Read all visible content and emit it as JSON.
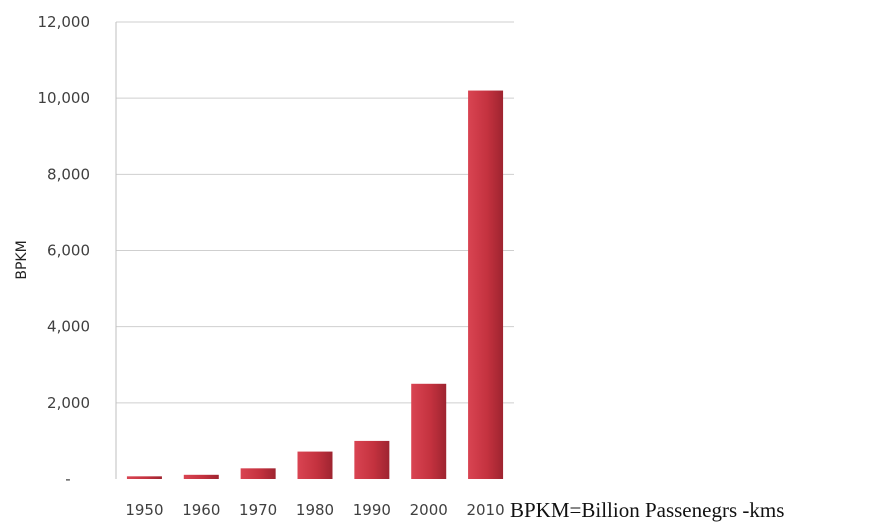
{
  "chart_data": {
    "type": "bar",
    "categories": [
      "1950",
      "1960",
      "1970",
      "1980",
      "1990",
      "2000",
      "2010"
    ],
    "values": [
      70,
      110,
      280,
      720,
      1000,
      2500,
      10200
    ],
    "ylabel": "BPKM",
    "xlabel": "",
    "ylim": [
      0,
      12000
    ],
    "yticks": [
      0,
      2000,
      4000,
      6000,
      8000,
      10000,
      12000
    ],
    "ytick_labels": [
      "-",
      "2,000",
      "4,000",
      "6,000",
      "8,000",
      "10,000",
      "12,000"
    ],
    "grid": true,
    "bar_color": "#c4323f"
  },
  "note": "BPKM=Billion Passenegrs -kms"
}
